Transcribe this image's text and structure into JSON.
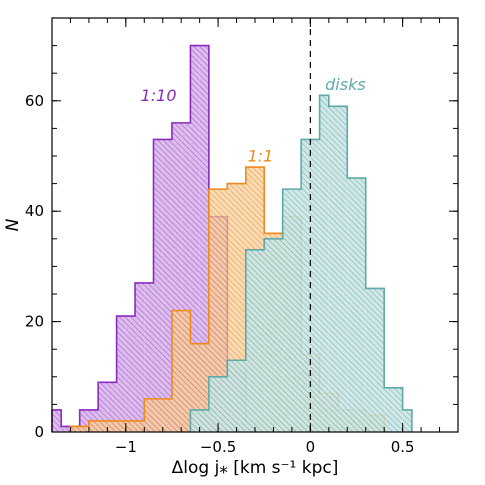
{
  "chart_data": {
    "type": "histogram",
    "xlabel": "Δlog j⁎ [km s⁻¹ kpc]",
    "ylabel": "N",
    "xlim": [
      -1.4,
      0.8
    ],
    "ylim": [
      0,
      75
    ],
    "xticks": [
      -1,
      -0.5,
      0,
      0.5
    ],
    "xtick_labels": [
      "−1",
      "−0.5",
      "0",
      "0.5"
    ],
    "yticks": [
      0,
      20,
      40,
      60
    ],
    "ytick_labels": [
      "0",
      "20",
      "40",
      "60"
    ],
    "grid": false,
    "hatching": "diagonal",
    "reference_line": {
      "x": 0,
      "style": "dashed"
    },
    "series": [
      {
        "name": "1:10",
        "color": "#9a33cc",
        "bin_edges": [
          -1.4,
          -1.35,
          -1.3,
          -1.25,
          -1.2,
          -1.15,
          -1.1,
          -1.05,
          -1.0,
          -0.95,
          -0.9,
          -0.85,
          -0.8,
          -0.75,
          -0.7,
          -0.65,
          -0.6,
          -0.55,
          -0.5,
          -0.45,
          -0.4,
          -0.35,
          -0.3
        ],
        "counts": [
          4,
          1,
          1,
          4,
          4,
          9,
          9,
          21,
          21,
          27,
          27,
          53,
          53,
          56,
          56,
          70,
          70,
          39,
          39,
          11,
          11,
          2
        ]
      },
      {
        "name": "1:1",
        "color": "#f08a1e",
        "bin_edges": [
          -1.3,
          -1.2,
          -1.1,
          -1.0,
          -0.9,
          -0.8,
          -0.75,
          -0.7,
          -0.65,
          -0.6,
          -0.55,
          -0.5,
          -0.45,
          -0.4,
          -0.35,
          -0.3,
          -0.25,
          -0.2,
          -0.15,
          -0.1,
          -0.05,
          0.0,
          0.05,
          0.1,
          0.15,
          0.2,
          0.25,
          0.3,
          0.35,
          0.4
        ],
        "counts": [
          1,
          2,
          2,
          2,
          6,
          6,
          22,
          22,
          16,
          16,
          44,
          44,
          45,
          45,
          48,
          48,
          36,
          36,
          39,
          39,
          14,
          14,
          7,
          7,
          4,
          4,
          4,
          3,
          3
        ]
      },
      {
        "name": "disks",
        "color": "#5fa9a8",
        "bin_edges": [
          -0.65,
          -0.6,
          -0.55,
          -0.5,
          -0.45,
          -0.4,
          -0.35,
          -0.3,
          -0.25,
          -0.2,
          -0.15,
          -0.1,
          -0.05,
          0.0,
          0.05,
          0.1,
          0.15,
          0.2,
          0.25,
          0.3,
          0.35,
          0.4,
          0.45,
          0.5,
          0.55
        ],
        "counts": [
          4,
          4,
          10,
          10,
          13,
          13,
          33,
          33,
          35,
          35,
          44,
          44,
          53,
          53,
          61,
          59,
          59,
          46,
          46,
          26,
          26,
          8,
          8,
          4
        ]
      }
    ]
  }
}
